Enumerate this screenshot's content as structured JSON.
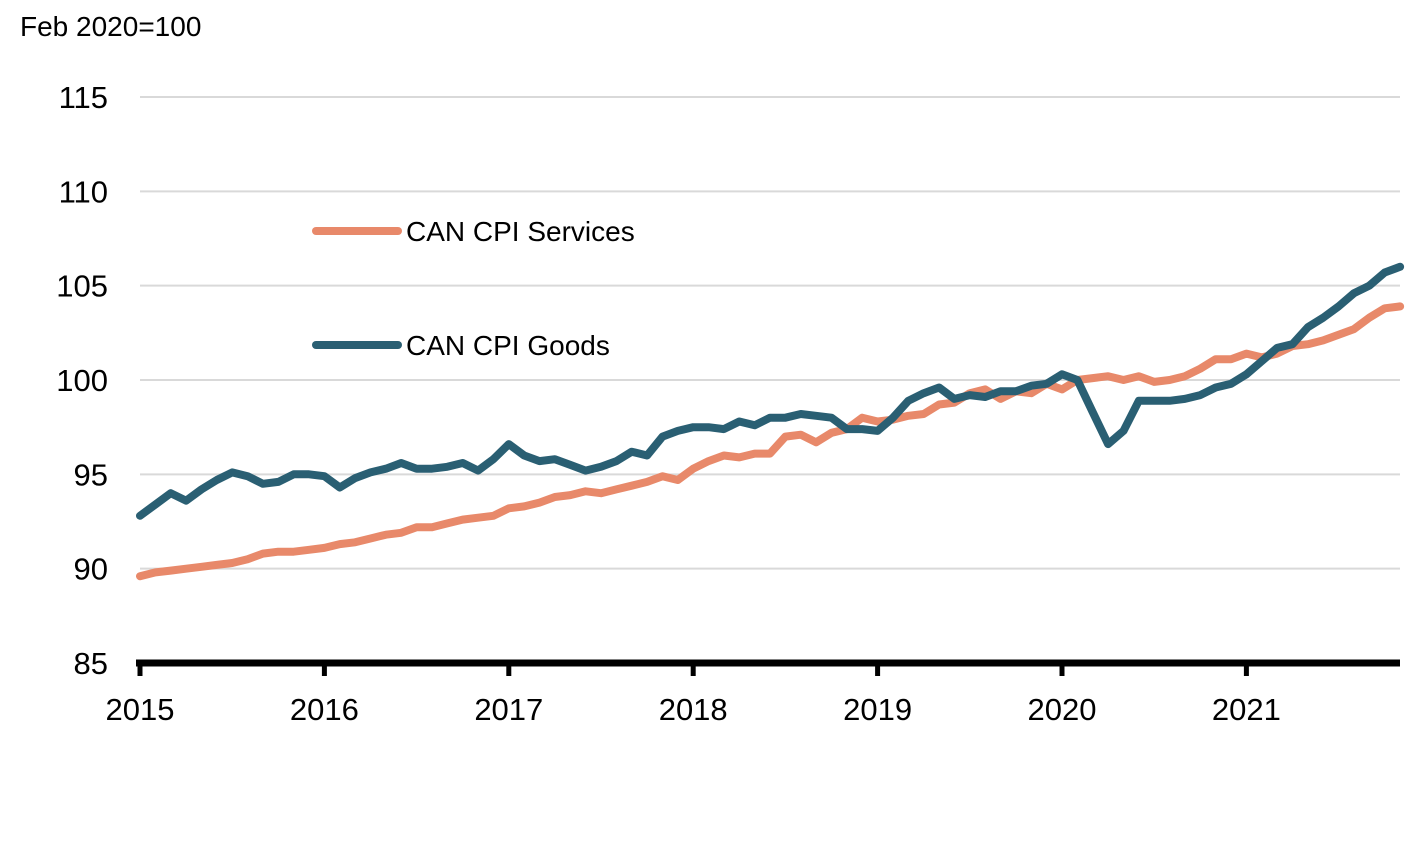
{
  "chart_data": {
    "type": "line",
    "title": "",
    "unit_label": "Feb 2020=100",
    "xlabel": "",
    "ylabel": "",
    "ylim": [
      85,
      115
    ],
    "y_ticks": [
      85,
      90,
      95,
      100,
      105,
      110,
      115
    ],
    "x_ticks": [
      "2015",
      "2016",
      "2017",
      "2018",
      "2019",
      "2020",
      "2021"
    ],
    "x_range": [
      2015.0,
      2021.833
    ],
    "grid": "horizontal",
    "legend_position": "upper-left-inside",
    "colors": {
      "services": "#E8896A",
      "goods": "#2A5F73",
      "grid": "#D9D9D9",
      "axis": "#000000"
    },
    "series": [
      {
        "name": "CAN CPI Services",
        "color": "#E8896A",
        "x": [
          "2015-01",
          "2015-02",
          "2015-03",
          "2015-04",
          "2015-05",
          "2015-06",
          "2015-07",
          "2015-08",
          "2015-09",
          "2015-10",
          "2015-11",
          "2015-12",
          "2016-01",
          "2016-02",
          "2016-03",
          "2016-04",
          "2016-05",
          "2016-06",
          "2016-07",
          "2016-08",
          "2016-09",
          "2016-10",
          "2016-11",
          "2016-12",
          "2017-01",
          "2017-02",
          "2017-03",
          "2017-04",
          "2017-05",
          "2017-06",
          "2017-07",
          "2017-08",
          "2017-09",
          "2017-10",
          "2017-11",
          "2017-12",
          "2018-01",
          "2018-02",
          "2018-03",
          "2018-04",
          "2018-05",
          "2018-06",
          "2018-07",
          "2018-08",
          "2018-09",
          "2018-10",
          "2018-11",
          "2018-12",
          "2019-01",
          "2019-02",
          "2019-03",
          "2019-04",
          "2019-05",
          "2019-06",
          "2019-07",
          "2019-08",
          "2019-09",
          "2019-10",
          "2019-11",
          "2019-12",
          "2020-01",
          "2020-02",
          "2020-03",
          "2020-04",
          "2020-05",
          "2020-06",
          "2020-07",
          "2020-08",
          "2020-09",
          "2020-10",
          "2020-11",
          "2020-12",
          "2021-01",
          "2021-02",
          "2021-03",
          "2021-04",
          "2021-05",
          "2021-06",
          "2021-07",
          "2021-08",
          "2021-09",
          "2021-10",
          "2021-11"
        ],
        "values": [
          89.6,
          89.8,
          89.9,
          90.0,
          90.1,
          90.2,
          90.3,
          90.5,
          90.8,
          90.9,
          90.9,
          91.0,
          91.1,
          91.3,
          91.4,
          91.6,
          91.8,
          91.9,
          92.2,
          92.2,
          92.4,
          92.6,
          92.7,
          92.8,
          93.2,
          93.3,
          93.5,
          93.8,
          93.9,
          94.1,
          94.0,
          94.2,
          94.4,
          94.6,
          94.9,
          94.7,
          95.3,
          95.7,
          96.0,
          95.9,
          96.1,
          96.1,
          97.0,
          97.1,
          96.7,
          97.2,
          97.4,
          98.0,
          97.8,
          97.9,
          98.1,
          98.2,
          98.7,
          98.8,
          99.3,
          99.5,
          99.0,
          99.4,
          99.3,
          99.8,
          99.5,
          100.0,
          100.1,
          100.2,
          100.0,
          100.2,
          99.9,
          100.0,
          100.2,
          100.6,
          101.1,
          101.1,
          101.4,
          101.2,
          101.4,
          101.8,
          101.9,
          102.1,
          102.4,
          102.7,
          103.3,
          103.8,
          103.9
        ]
      },
      {
        "name": "CAN CPI Goods",
        "color": "#2A5F73",
        "x": [
          "2015-01",
          "2015-02",
          "2015-03",
          "2015-04",
          "2015-05",
          "2015-06",
          "2015-07",
          "2015-08",
          "2015-09",
          "2015-10",
          "2015-11",
          "2015-12",
          "2016-01",
          "2016-02",
          "2016-03",
          "2016-04",
          "2016-05",
          "2016-06",
          "2016-07",
          "2016-08",
          "2016-09",
          "2016-10",
          "2016-11",
          "2016-12",
          "2017-01",
          "2017-02",
          "2017-03",
          "2017-04",
          "2017-05",
          "2017-06",
          "2017-07",
          "2017-08",
          "2017-09",
          "2017-10",
          "2017-11",
          "2017-12",
          "2018-01",
          "2018-02",
          "2018-03",
          "2018-04",
          "2018-05",
          "2018-06",
          "2018-07",
          "2018-08",
          "2018-09",
          "2018-10",
          "2018-11",
          "2018-12",
          "2019-01",
          "2019-02",
          "2019-03",
          "2019-04",
          "2019-05",
          "2019-06",
          "2019-07",
          "2019-08",
          "2019-09",
          "2019-10",
          "2019-11",
          "2019-12",
          "2020-01",
          "2020-02",
          "2020-03",
          "2020-04",
          "2020-05",
          "2020-06",
          "2020-07",
          "2020-08",
          "2020-09",
          "2020-10",
          "2020-11",
          "2020-12",
          "2021-01",
          "2021-02",
          "2021-03",
          "2021-04",
          "2021-05",
          "2021-06",
          "2021-07",
          "2021-08",
          "2021-09",
          "2021-10",
          "2021-11"
        ],
        "values": [
          92.8,
          93.4,
          94.0,
          93.6,
          94.2,
          94.7,
          95.1,
          94.9,
          94.5,
          94.6,
          95.0,
          95.0,
          94.9,
          94.3,
          94.8,
          95.1,
          95.3,
          95.6,
          95.3,
          95.3,
          95.4,
          95.6,
          95.2,
          95.8,
          96.6,
          96.0,
          95.7,
          95.8,
          95.5,
          95.2,
          95.4,
          95.7,
          96.2,
          96.0,
          97.0,
          97.3,
          97.5,
          97.5,
          97.4,
          97.8,
          97.6,
          98.0,
          98.0,
          98.2,
          98.1,
          98.0,
          97.4,
          97.4,
          97.3,
          98.0,
          98.9,
          99.3,
          99.6,
          99.0,
          99.2,
          99.1,
          99.4,
          99.4,
          99.7,
          99.8,
          100.3,
          100.0,
          98.3,
          96.6,
          97.3,
          98.9,
          98.9,
          98.9,
          99.0,
          99.2,
          99.6,
          99.8,
          100.3,
          101.0,
          101.7,
          101.9,
          102.8,
          103.3,
          103.9,
          104.6,
          105.0,
          105.7,
          106.0
        ]
      }
    ]
  }
}
